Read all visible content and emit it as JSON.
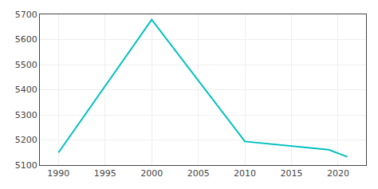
{
  "chart_data": {
    "type": "line",
    "x": [
      1990,
      2000,
      2010,
      2019,
      2021
    ],
    "values": [
      5150,
      5679,
      5194,
      5161,
      5133
    ],
    "color": "#00c0c0",
    "xlim": [
      1988,
      2023
    ],
    "ylim": [
      5100,
      5700
    ],
    "xticks": [
      1990,
      1995,
      2000,
      2005,
      2010,
      2015,
      2020
    ],
    "yticks": [
      5100,
      5200,
      5300,
      5400,
      5500,
      5600,
      5700
    ],
    "grid": true
  }
}
